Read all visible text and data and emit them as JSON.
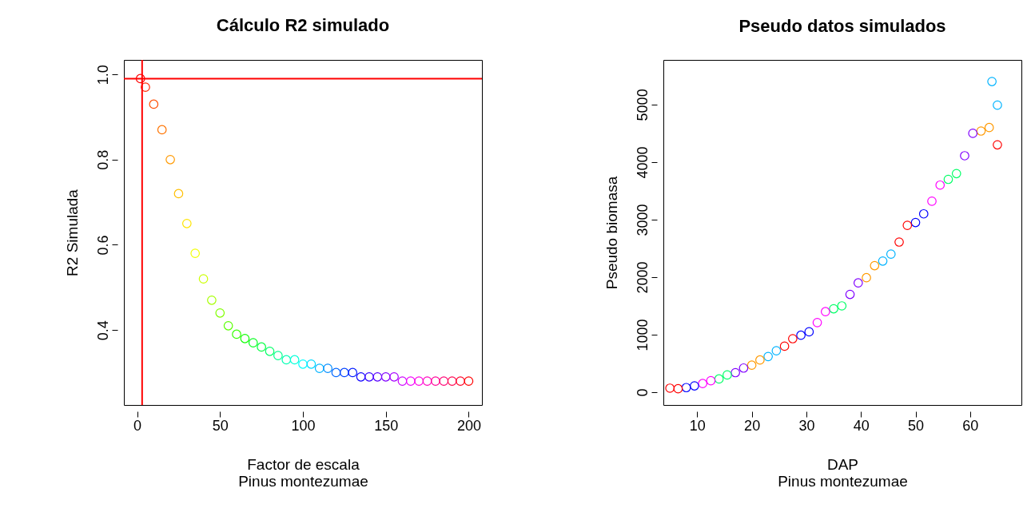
{
  "chart_data": [
    {
      "type": "scatter",
      "title": "Cálculo R2 simulado",
      "xlabel": "Factor de escala\nPinus montezumae",
      "ylabel": "R2 Simulada",
      "marker": "circle",
      "grid": false,
      "xlim": [
        -8,
        208
      ],
      "ylim": [
        0.224,
        1.034
      ],
      "xticks": [
        0,
        50,
        100,
        150,
        200
      ],
      "yticks": [
        0.4,
        0.6,
        0.8,
        {
          "value": 1,
          "label": "1.0"
        }
      ],
      "x": [
        2,
        5,
        10,
        15,
        20,
        25,
        30,
        35,
        40,
        45,
        50,
        55,
        60,
        65,
        70,
        75,
        80,
        85,
        90,
        95,
        100,
        105,
        110,
        115,
        120,
        125,
        130,
        135,
        140,
        145,
        150,
        155,
        160,
        165,
        170,
        175,
        180,
        185,
        190,
        195,
        200
      ],
      "values": [
        0.99,
        0.97,
        0.93,
        0.87,
        0.8,
        0.72,
        0.65,
        0.58,
        0.52,
        0.47,
        0.44,
        0.41,
        0.39,
        0.38,
        0.37,
        0.36,
        0.35,
        0.34,
        0.33,
        0.33,
        0.32,
        0.32,
        0.31,
        0.31,
        0.3,
        0.3,
        0.3,
        0.29,
        0.29,
        0.29,
        0.29,
        0.29,
        0.28,
        0.28,
        0.28,
        0.28,
        0.28,
        0.28,
        0.28,
        0.28,
        0.28
      ],
      "colors": [
        "#ff0000",
        "#ff2600",
        "#ff4d00",
        "#ff7300",
        "#ff9900",
        "#ffbf00",
        "#ffe500",
        "#f2ff00",
        "#ccff00",
        "#a6ff00",
        "#80ff00",
        "#59ff00",
        "#33ff00",
        "#0dff00",
        "#00ff1a",
        "#00ff40",
        "#00ff66",
        "#00ff8c",
        "#00ffb3",
        "#00ffd9",
        "#00ffff",
        "#00d9ff",
        "#00b3ff",
        "#008cff",
        "#0066ff",
        "#0040ff",
        "#001aff",
        "#0d00ff",
        "#3300ff",
        "#5900ff",
        "#8000ff",
        "#a600ff",
        "#cc00ff",
        "#f200ff",
        "#ff00e6",
        "#ff00bf",
        "#ff0099",
        "#ff0073",
        "#ff004d",
        "#ff0026",
        "#ff0000"
      ],
      "ref_lines": [
        {
          "axis": "y",
          "value": 0.99,
          "color": "#ff0000"
        },
        {
          "axis": "x",
          "value": 3,
          "color": "#ff0000"
        }
      ]
    },
    {
      "type": "scatter",
      "title": "Pseudo datos simulados",
      "xlabel": "DAP\nPinus montezumae",
      "ylabel": "Pseudo biomasa",
      "marker": "circle",
      "grid": false,
      "xlim": [
        3.8,
        69.4
      ],
      "ylim": [
        -222,
        5776
      ],
      "xticks": [
        10,
        20,
        30,
        40,
        50,
        60
      ],
      "yticks": [
        0,
        1000,
        2000,
        3000,
        4000,
        5000
      ],
      "x": [
        5,
        8,
        11,
        14,
        17,
        20,
        23,
        26,
        29,
        32,
        35,
        38,
        41,
        44,
        47,
        50,
        53,
        56,
        59,
        62,
        65,
        6.5,
        9.5,
        12.5,
        15.5,
        18.5,
        21.5,
        24.5,
        27.5,
        30.5,
        33.5,
        36.5,
        39.5,
        42.5,
        45.5,
        48.5,
        51.5,
        54.5,
        57.5,
        60.5,
        63.5,
        64,
        65
      ],
      "values": [
        70,
        80,
        150,
        230,
        340,
        470,
        620,
        800,
        990,
        1210,
        1450,
        1700,
        1990,
        2280,
        2610,
        2950,
        3320,
        3700,
        4110,
        4540,
        4990,
        60,
        110,
        200,
        300,
        420,
        560,
        720,
        930,
        1050,
        1400,
        1500,
        1900,
        2200,
        2400,
        2900,
        3100,
        3600,
        3800,
        4500,
        4600,
        5400,
        4300
      ],
      "colors": [
        "#ff0000",
        "#0000ff",
        "#ff00ff",
        "#00ff66",
        "#8000ff",
        "#ff9900",
        "#00b3ff",
        "#ff0000",
        "#0000ff",
        "#ff00ff",
        "#00ff66",
        "#8000ff",
        "#ff9900",
        "#00b3ff",
        "#ff0000",
        "#0000ff",
        "#ff00ff",
        "#00ff66",
        "#8000ff",
        "#ff9900",
        "#00b3ff",
        "#ff0000",
        "#0000ff",
        "#ff00ff",
        "#00ff66",
        "#8000ff",
        "#ff9900",
        "#00b3ff",
        "#ff0000",
        "#0000ff",
        "#ff00ff",
        "#00ff66",
        "#8000ff",
        "#ff9900",
        "#00b3ff",
        "#ff0000",
        "#0000ff",
        "#ff00ff",
        "#00ff66",
        "#8000ff",
        "#ff9900",
        "#00b3ff",
        "#ff0000"
      ]
    }
  ]
}
